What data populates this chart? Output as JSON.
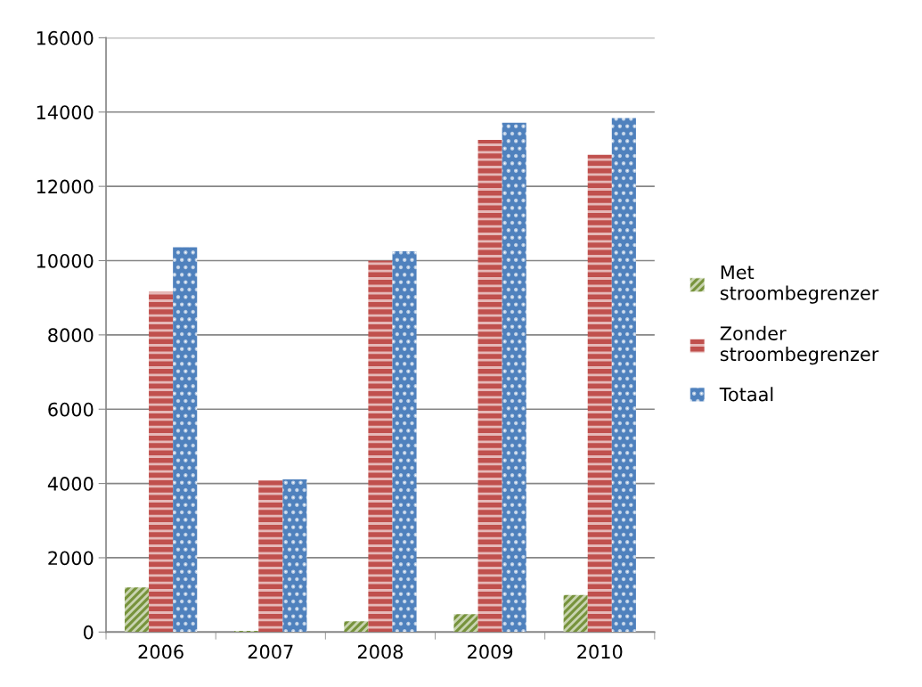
{
  "chart_data": {
    "type": "bar",
    "categories": [
      "2006",
      "2007",
      "2008",
      "2009",
      "2010"
    ],
    "series": [
      {
        "name": "Met stroombegrenzer",
        "color": "#77933c",
        "values": [
          1200,
          30,
          290,
          480,
          1000
        ]
      },
      {
        "name": "Zonder stroombegrenzer",
        "color": "#c0504d",
        "values": [
          9160,
          4080,
          10000,
          13250,
          12850
        ]
      },
      {
        "name": "Totaal",
        "color": "#4f81bd",
        "values": [
          10360,
          4110,
          10250,
          13710,
          13840
        ]
      }
    ],
    "ylim": [
      0,
      16000
    ],
    "yticks": [
      0,
      2000,
      4000,
      6000,
      8000,
      10000,
      12000,
      14000,
      16000
    ],
    "grid": "y",
    "legend": "right"
  }
}
